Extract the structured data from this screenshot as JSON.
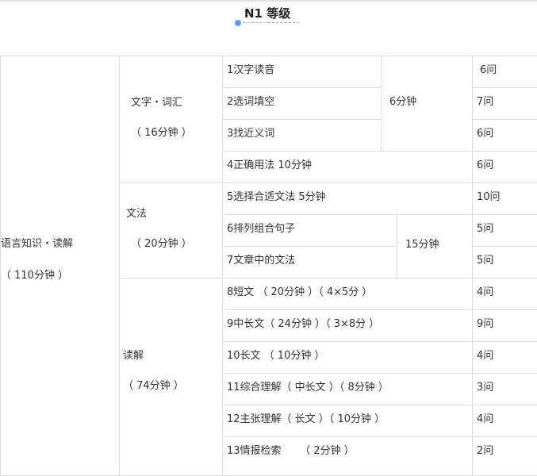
{
  "heading": {
    "title": "N1 等级",
    "accent_color": "#5b9cf0"
  },
  "section": {
    "name": "语言知识・读解",
    "time": "（ 110分钟 ）"
  },
  "groups": [
    {
      "name": "文字・词汇",
      "time": "（ 16分钟 ）"
    },
    {
      "name": "文法",
      "time": "（ 20分钟 ）"
    },
    {
      "name": "读解",
      "time": "（ 74分钟 ）"
    }
  ],
  "rows": [
    {
      "item": "1汉字读音",
      "count": "6问"
    },
    {
      "item": "2选词填空",
      "count": "7问"
    },
    {
      "item": "3找近义词",
      "count": "6问"
    },
    {
      "item": "4正确用法 10分钟",
      "count": "6问"
    },
    {
      "item": "5选择合适文法 5分钟",
      "count": "10问"
    },
    {
      "item": "6排列组合句子",
      "count": "5问"
    },
    {
      "item": "7文章中的文法",
      "count": "5问"
    },
    {
      "item": "8短文 （ 20分钟 ）（ 4×5分 ）",
      "count": "4问"
    },
    {
      "item": "9中长文（ 24分钟 ）（ 3×8分 ）",
      "count": "9问"
    },
    {
      "item": "10长文 （ 10分钟 ）",
      "count": "4问"
    },
    {
      "item": "11综合理解（ 中长文 ）（ 8分钟 ）",
      "count": "3问"
    },
    {
      "item": "12主张理解（ 长文 ）（ 10分钟 ）",
      "count": "4问"
    },
    {
      "item": "13情报检索 　　（ 2分钟 ）",
      "count": "2问"
    }
  ],
  "merged_times": {
    "vocab": "6分钟",
    "grammar": "15分钟"
  }
}
